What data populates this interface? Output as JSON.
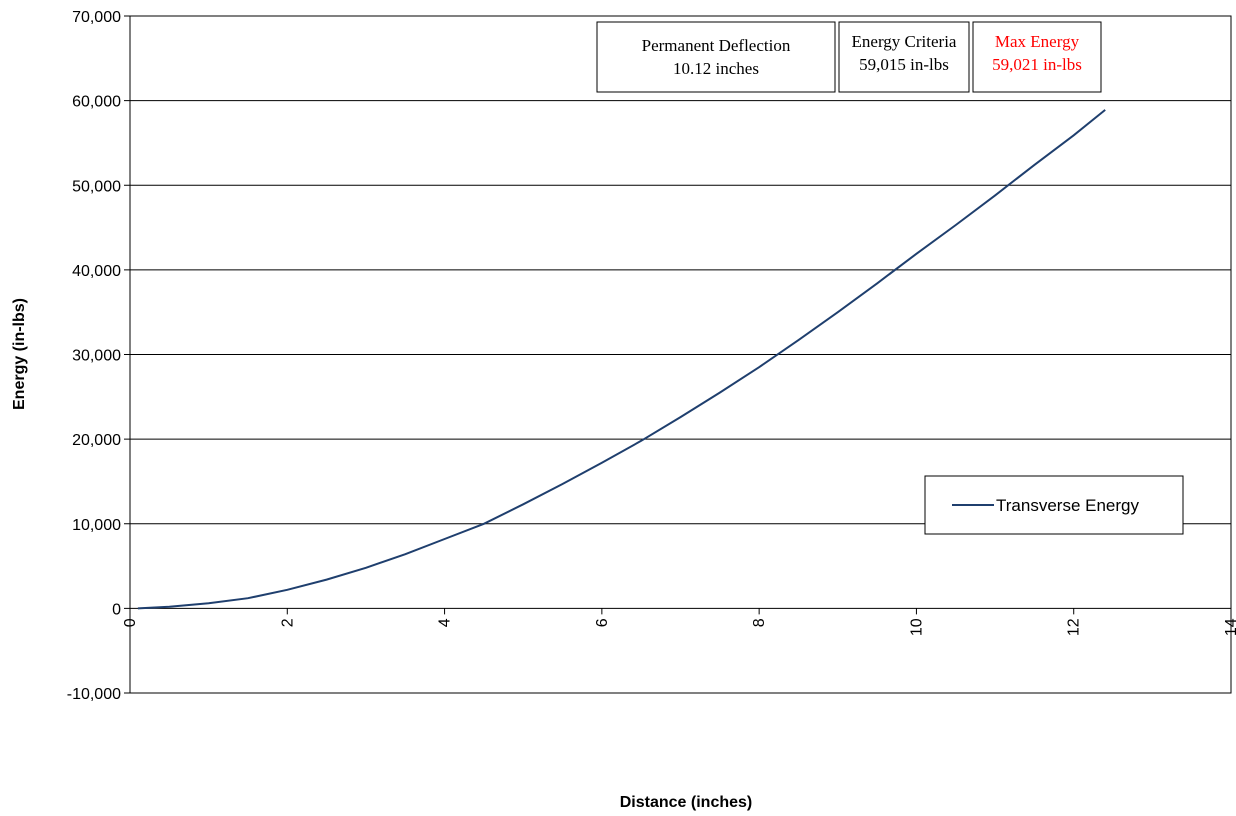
{
  "chart_data": {
    "type": "line",
    "xlabel": "Distance (inches)",
    "ylabel": "Energy (in-lbs)",
    "xlim": [
      0,
      14
    ],
    "ylim": [
      -10000,
      70000
    ],
    "x_ticks": [
      0,
      2,
      4,
      6,
      8,
      10,
      12,
      14
    ],
    "y_ticks": [
      -10000,
      0,
      10000,
      20000,
      30000,
      40000,
      50000,
      60000,
      70000
    ],
    "x_tick_labels": [
      "0",
      "2",
      "4",
      "6",
      "8",
      "10",
      "12",
      "14"
    ],
    "y_tick_labels": [
      "-10,000",
      "0",
      "10,000",
      "20,000",
      "30,000",
      "40,000",
      "50,000",
      "60,000",
      "70,000"
    ],
    "grid": "horizontal",
    "legend_position": "right",
    "series": [
      {
        "name": "Transverse Energy",
        "color": "#1f3f6e",
        "x": [
          0.1,
          0.5,
          1.0,
          1.5,
          2.0,
          2.5,
          3.0,
          3.5,
          4.0,
          4.5,
          5.0,
          5.5,
          6.0,
          6.5,
          7.0,
          7.5,
          8.0,
          8.5,
          9.0,
          9.5,
          10.0,
          10.5,
          11.0,
          11.5,
          12.0,
          12.4
        ],
        "y": [
          0,
          200,
          600,
          1200,
          2200,
          3400,
          4800,
          6400,
          8200,
          10000,
          12300,
          14700,
          17200,
          19800,
          22600,
          25500,
          28500,
          31700,
          35000,
          38400,
          41900,
          45300,
          48800,
          52400,
          55900,
          58900
        ]
      }
    ],
    "annotations": [
      {
        "lines": [
          "Permanent Deflection",
          "10.12 inches"
        ],
        "color": "#000000"
      },
      {
        "lines": [
          "Energy Criteria",
          "59,015 in-lbs"
        ],
        "color": "#000000"
      },
      {
        "lines": [
          "Max Energy",
          "59,021 in-lbs"
        ],
        "color": "#ff0000"
      }
    ]
  }
}
